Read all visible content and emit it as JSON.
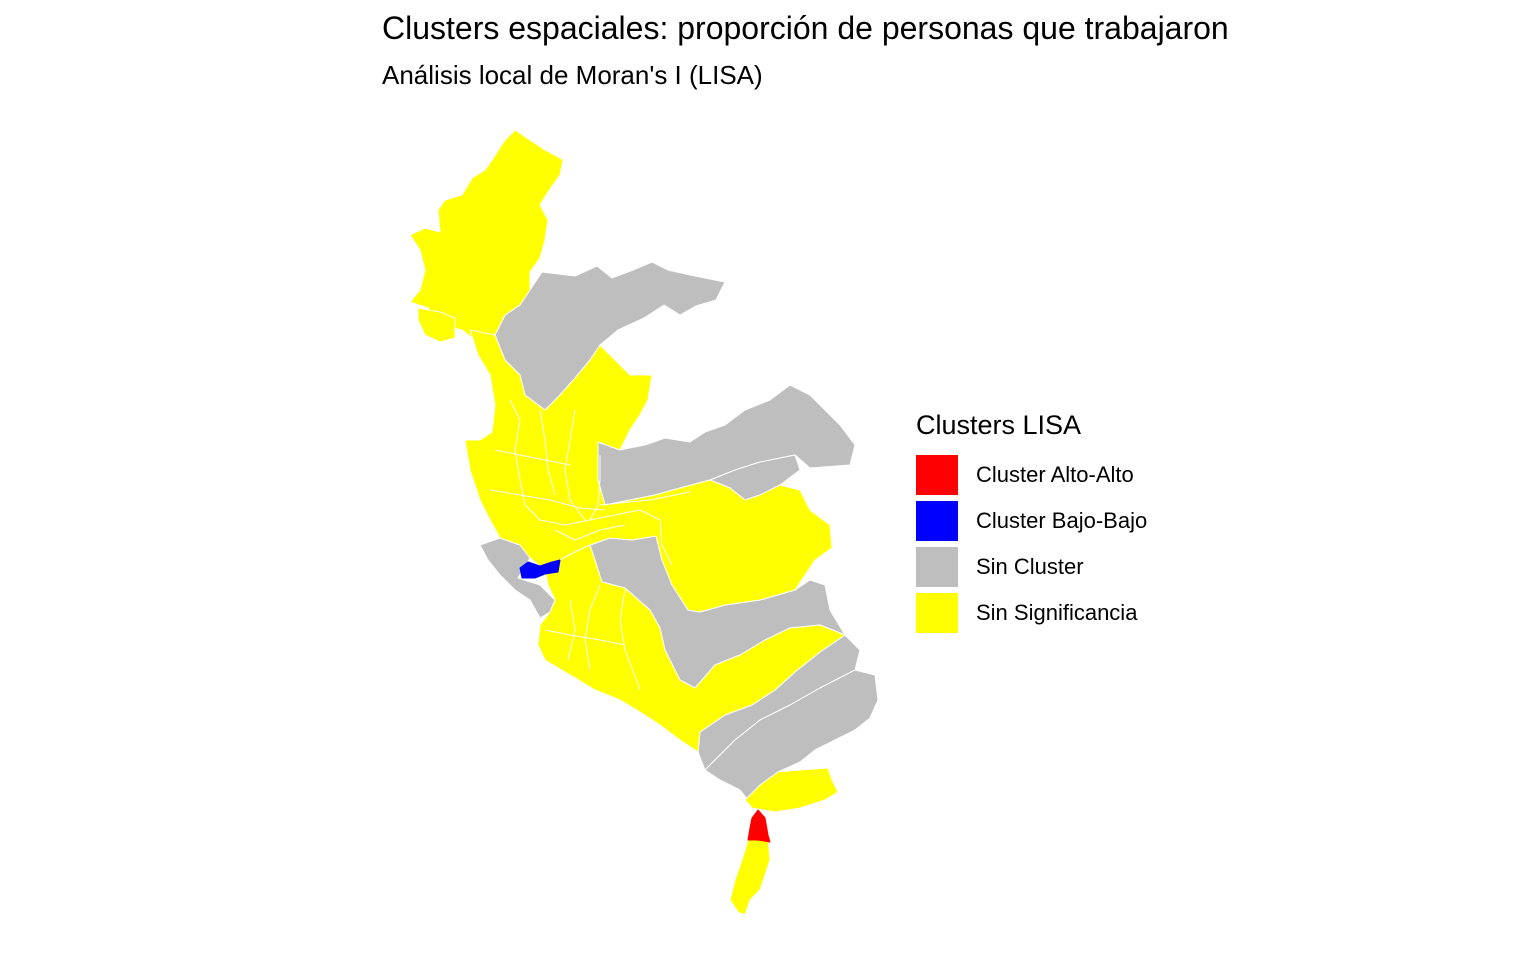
{
  "title": "Clusters espaciales: proporción de personas que trabajaron",
  "subtitle": "Análisis local de Moran's I (LISA)",
  "legend": {
    "title": "Clusters LISA",
    "items": [
      {
        "label": "Cluster Alto-Alto",
        "color": "#FF0000"
      },
      {
        "label": "Cluster Bajo-Bajo",
        "color": "#0000FF"
      },
      {
        "label": "Sin Cluster",
        "color": "#BEBEBE"
      },
      {
        "label": "Sin Significancia",
        "color": "#FFFF00"
      }
    ]
  },
  "colors": {
    "alto_alto": "#FF0000",
    "bajo_bajo": "#0000FF",
    "sin_cluster": "#BEBEBE",
    "sin_significancia": "#FFFF00",
    "border": "#FFFFFF"
  }
}
